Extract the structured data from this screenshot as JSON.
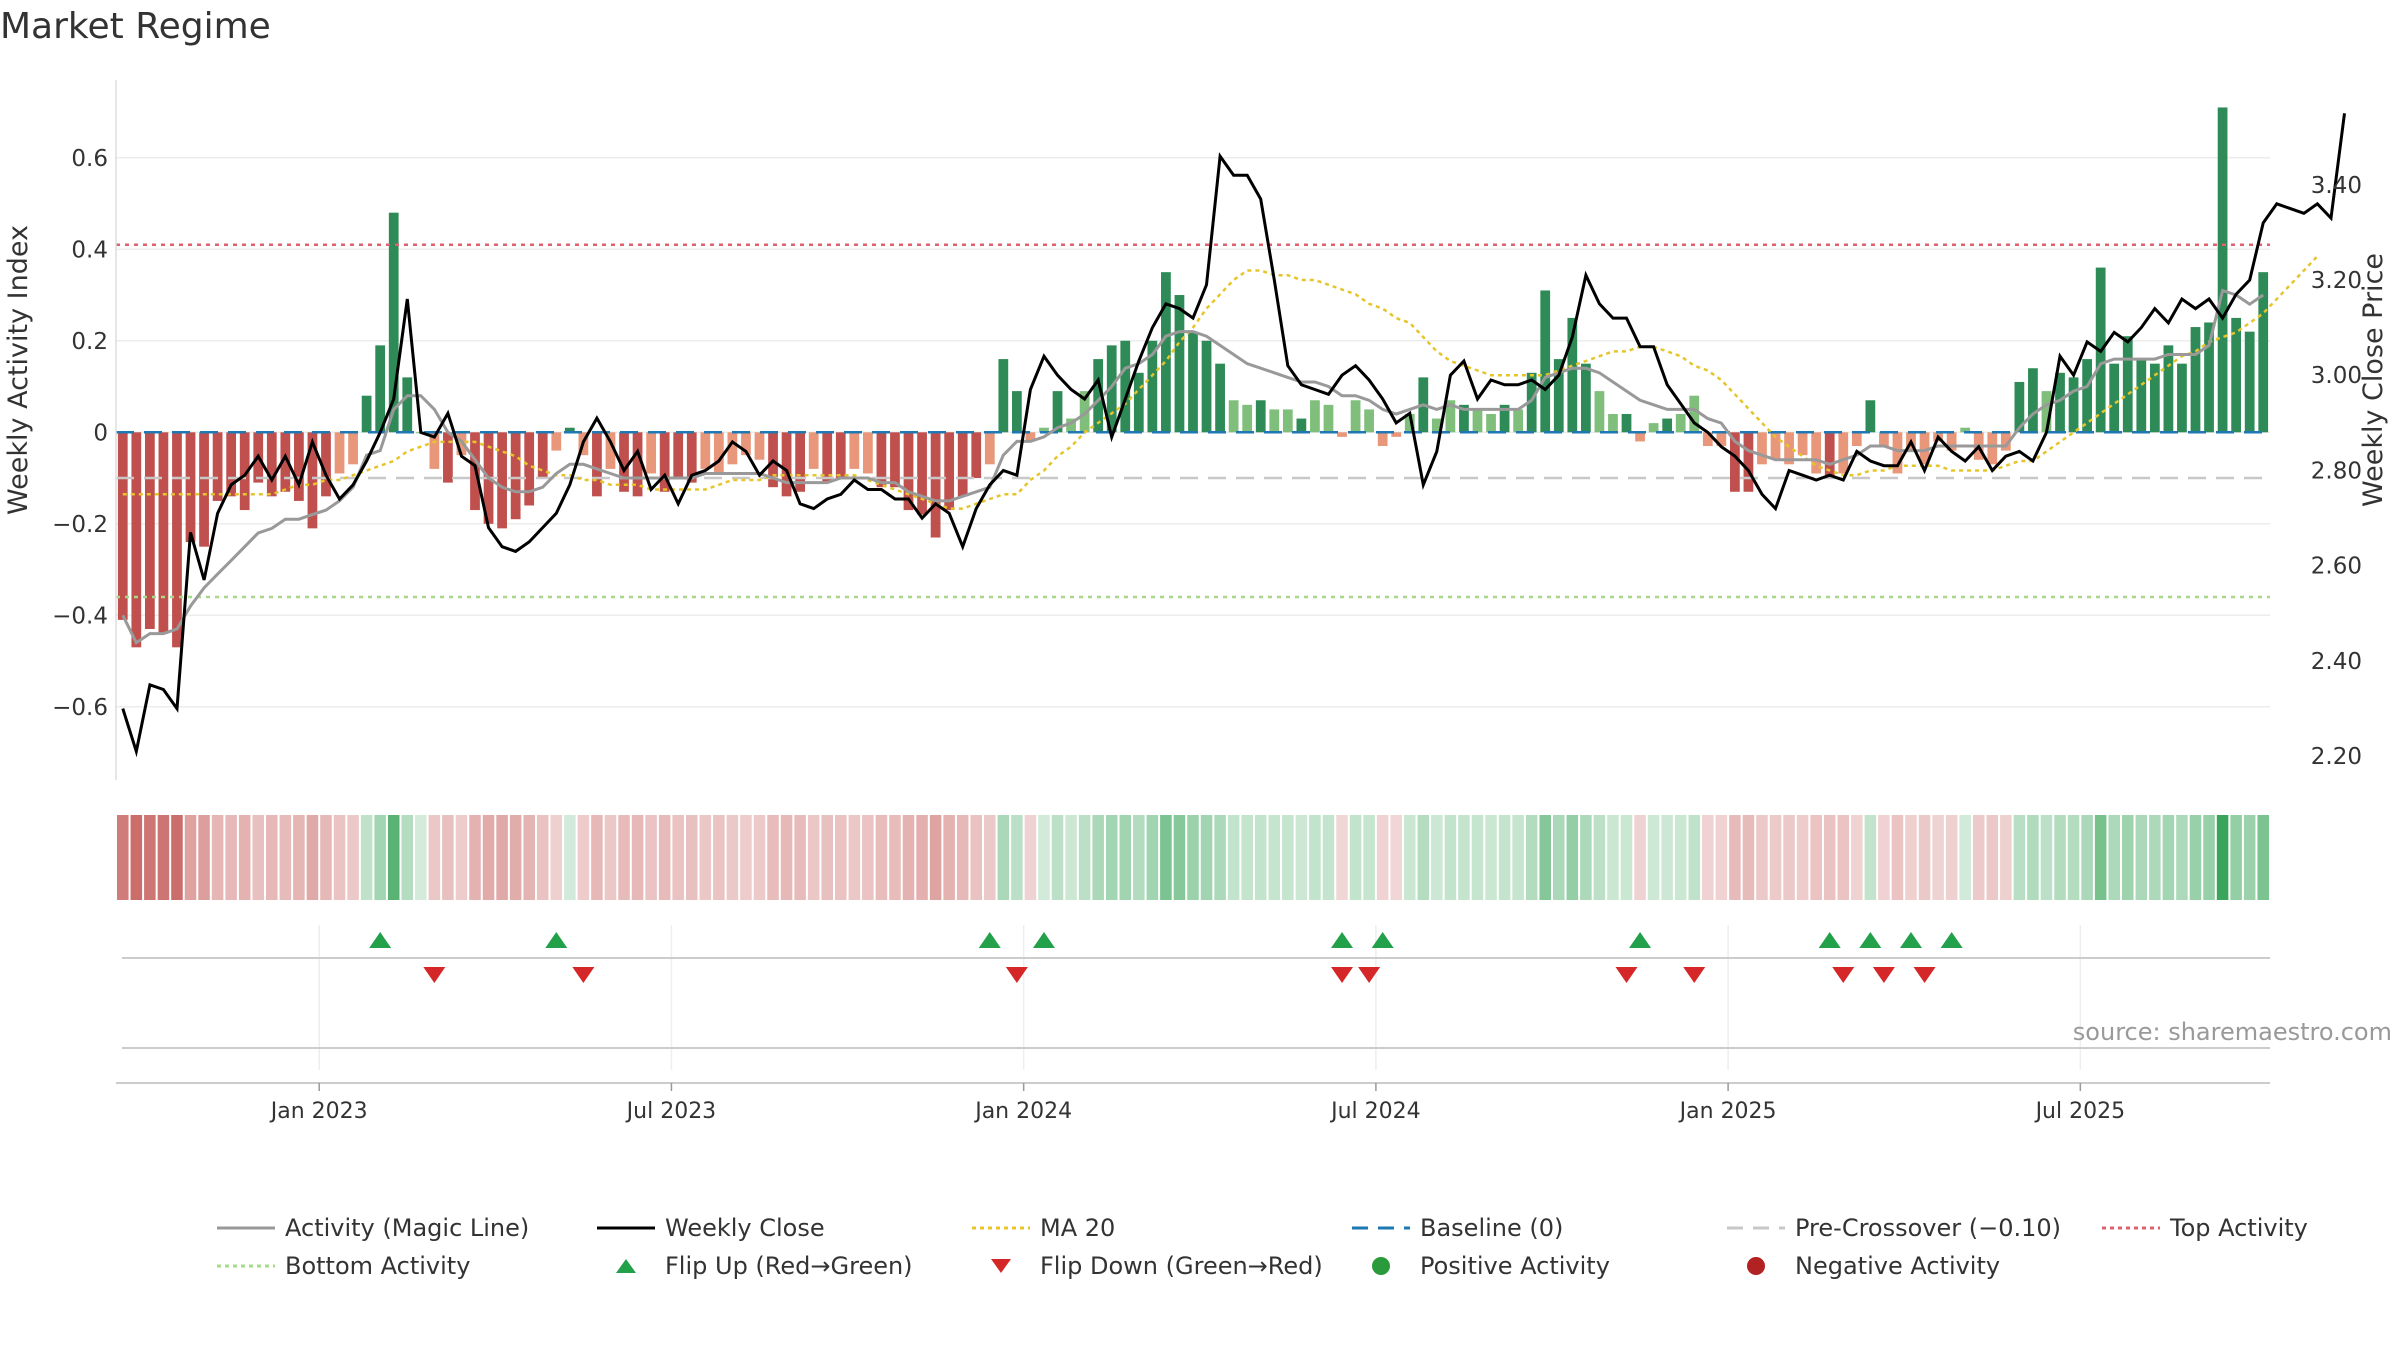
{
  "title": "Market Regime",
  "source": "source: sharemaestro.com",
  "colors": {
    "positive_dark": "#2e8b57",
    "positive_light": "#7fbf7b",
    "negative_dark": "#c0504d",
    "negative_light": "#e8977a",
    "activity_line": "#999999",
    "weekly_close": "#000000",
    "ma20": "#e6c52a",
    "baseline": "#1f77b4",
    "pre_crossover": "#c8c8c8",
    "top_activity": "#e06070",
    "bottom_activity": "#a8d88a",
    "flip_up": "#22a04a",
    "flip_down": "#d62728",
    "positive_dot": "#2a9a3a",
    "negative_dot": "#b22222"
  },
  "legend": [
    {
      "label": "Activity (Magic Line)",
      "style": "solid",
      "color": "#999999"
    },
    {
      "label": "Weekly Close",
      "style": "solid",
      "color": "#000000"
    },
    {
      "label": "MA 20",
      "style": "dotted",
      "color": "#e6c52a"
    },
    {
      "label": "Baseline (0)",
      "style": "dashed",
      "color": "#1f77b4"
    },
    {
      "label": "Pre-Crossover (−0.10)",
      "style": "dashed",
      "color": "#c8c8c8"
    },
    {
      "label": "Top Activity",
      "style": "dotted",
      "color": "#e06070"
    },
    {
      "label": "Bottom Activity",
      "style": "dotted",
      "color": "#a8d88a"
    },
    {
      "label": "Flip Up (Red→Green)",
      "style": "triangle-up",
      "color": "#22a04a"
    },
    {
      "label": "Flip Down (Green→Red)",
      "style": "triangle-down",
      "color": "#d62728"
    },
    {
      "label": "Positive Activity",
      "style": "dot",
      "color": "#2a9a3a"
    },
    {
      "label": "Negative Activity",
      "style": "dot",
      "color": "#b22222"
    }
  ],
  "chart_data": {
    "type": "bar",
    "title": "Market Regime",
    "ylabel_left": "Weekly Activity Index",
    "ylabel_right": "Weekly Close Price",
    "ylim_left": [
      -0.76,
      0.77
    ],
    "ylim_right": [
      2.15,
      3.62
    ],
    "yticks_left": [
      "0.6",
      "0.4",
      "0.2",
      "0",
      "−0.2",
      "−0.4",
      "−0.6"
    ],
    "yticks_left_values": [
      0.6,
      0.4,
      0.2,
      0,
      -0.2,
      -0.4,
      -0.6
    ],
    "yticks_right": [
      "3.40",
      "3.20",
      "3.00",
      "2.80",
      "2.60",
      "2.40",
      "2.20"
    ],
    "yticks_right_values": [
      3.4,
      3.2,
      3.0,
      2.8,
      2.6,
      2.4,
      2.2
    ],
    "x_tick_labels": [
      "Jan 2023",
      "Jul 2023",
      "Jan 2024",
      "Jul 2024",
      "Jan 2025",
      "Jul 2025"
    ],
    "x_tick_weeks": [
      15,
      41,
      67,
      93,
      119,
      145
    ],
    "reference_lines": {
      "top_activity": 0.41,
      "bottom_activity": -0.36,
      "pre_crossover": -0.1,
      "baseline": 0
    },
    "activity_index": [
      -0.41,
      -0.47,
      -0.43,
      -0.44,
      -0.47,
      -0.24,
      -0.25,
      -0.15,
      -0.14,
      -0.17,
      -0.11,
      -0.14,
      -0.13,
      -0.15,
      -0.21,
      -0.14,
      -0.09,
      -0.07,
      0.08,
      0.19,
      0.48,
      0.12,
      0.0,
      -0.08,
      -0.11,
      -0.05,
      -0.17,
      -0.2,
      -0.21,
      -0.19,
      -0.16,
      -0.1,
      -0.04,
      0.01,
      -0.05,
      -0.14,
      -0.08,
      -0.13,
      -0.14,
      -0.09,
      -0.13,
      -0.1,
      -0.11,
      -0.08,
      -0.09,
      -0.07,
      -0.05,
      -0.06,
      -0.12,
      -0.14,
      -0.13,
      -0.08,
      -0.11,
      -0.1,
      -0.08,
      -0.09,
      -0.12,
      -0.12,
      -0.17,
      -0.18,
      -0.23,
      -0.17,
      -0.14,
      -0.1,
      -0.07,
      0.16,
      0.09,
      -0.02,
      0.01,
      0.09,
      0.03,
      0.09,
      0.16,
      0.19,
      0.2,
      0.13,
      0.2,
      0.35,
      0.3,
      0.22,
      0.2,
      0.15,
      0.07,
      0.06,
      0.07,
      0.05,
      0.05,
      0.03,
      0.07,
      0.06,
      -0.01,
      0.07,
      0.05,
      -0.03,
      -0.01,
      0.04,
      0.12,
      0.03,
      0.07,
      0.06,
      0.05,
      0.04,
      0.06,
      0.05,
      0.13,
      0.31,
      0.16,
      0.25,
      0.15,
      0.09,
      0.04,
      0.04,
      -0.02,
      0.02,
      0.03,
      0.04,
      0.08,
      -0.03,
      -0.03,
      -0.13,
      -0.13,
      -0.07,
      -0.06,
      -0.07,
      -0.05,
      -0.09,
      -0.1,
      -0.09,
      -0.03,
      0.07,
      -0.03,
      -0.09,
      -0.04,
      -0.07,
      -0.02,
      -0.04,
      0.01,
      -0.06,
      -0.07,
      -0.04,
      0.11,
      0.14,
      0.09,
      0.13,
      0.12,
      0.16,
      0.36,
      0.15,
      0.21,
      0.16,
      0.15,
      0.19,
      0.15,
      0.23,
      0.24,
      0.71,
      0.25,
      0.22,
      0.35
    ],
    "magic_line": [
      -0.4,
      -0.46,
      -0.44,
      -0.44,
      -0.43,
      -0.38,
      -0.34,
      -0.31,
      -0.28,
      -0.25,
      -0.22,
      -0.21,
      -0.19,
      -0.19,
      -0.18,
      -0.17,
      -0.15,
      -0.12,
      -0.05,
      -0.04,
      0.05,
      0.08,
      0.08,
      0.05,
      0.0,
      -0.02,
      -0.06,
      -0.1,
      -0.12,
      -0.13,
      -0.13,
      -0.12,
      -0.09,
      -0.07,
      -0.07,
      -0.08,
      -0.09,
      -0.1,
      -0.1,
      -0.1,
      -0.1,
      -0.1,
      -0.1,
      -0.09,
      -0.09,
      -0.09,
      -0.09,
      -0.09,
      -0.1,
      -0.11,
      -0.11,
      -0.11,
      -0.11,
      -0.1,
      -0.1,
      -0.1,
      -0.11,
      -0.11,
      -0.13,
      -0.14,
      -0.15,
      -0.15,
      -0.14,
      -0.13,
      -0.12,
      -0.05,
      -0.02,
      -0.02,
      -0.01,
      0.01,
      0.02,
      0.04,
      0.07,
      0.1,
      0.14,
      0.15,
      0.17,
      0.21,
      0.22,
      0.22,
      0.21,
      0.19,
      0.17,
      0.15,
      0.14,
      0.13,
      0.12,
      0.11,
      0.11,
      0.1,
      0.08,
      0.08,
      0.07,
      0.05,
      0.04,
      0.05,
      0.06,
      0.05,
      0.06,
      0.05,
      0.05,
      0.05,
      0.05,
      0.05,
      0.07,
      0.12,
      0.13,
      0.14,
      0.14,
      0.13,
      0.11,
      0.09,
      0.07,
      0.06,
      0.05,
      0.05,
      0.05,
      0.03,
      0.02,
      -0.02,
      -0.04,
      -0.05,
      -0.06,
      -0.06,
      -0.06,
      -0.06,
      -0.07,
      -0.06,
      -0.05,
      -0.03,
      -0.03,
      -0.04,
      -0.04,
      -0.04,
      -0.03,
      -0.03,
      -0.03,
      -0.03,
      -0.03,
      -0.03,
      0.01,
      0.04,
      0.06,
      0.07,
      0.09,
      0.1,
      0.15,
      0.16,
      0.16,
      0.16,
      0.16,
      0.17,
      0.17,
      0.17,
      0.19,
      0.31,
      0.3,
      0.28,
      0.3
    ],
    "weekly_close": [
      2.3,
      2.21,
      2.35,
      2.34,
      2.3,
      2.67,
      2.57,
      2.71,
      2.77,
      2.79,
      2.83,
      2.78,
      2.83,
      2.77,
      2.86,
      2.79,
      2.74,
      2.77,
      2.82,
      2.88,
      2.95,
      3.16,
      2.88,
      2.87,
      2.92,
      2.83,
      2.81,
      2.68,
      2.64,
      2.63,
      2.65,
      2.68,
      2.71,
      2.77,
      2.86,
      2.91,
      2.86,
      2.8,
      2.84,
      2.76,
      2.79,
      2.73,
      2.79,
      2.8,
      2.82,
      2.86,
      2.84,
      2.79,
      2.82,
      2.8,
      2.73,
      2.72,
      2.74,
      2.75,
      2.78,
      2.76,
      2.76,
      2.74,
      2.74,
      2.7,
      2.73,
      2.71,
      2.64,
      2.72,
      2.77,
      2.8,
      2.79,
      2.97,
      3.04,
      3.0,
      2.97,
      2.95,
      2.99,
      2.87,
      2.95,
      3.03,
      3.1,
      3.15,
      3.14,
      3.12,
      3.19,
      3.46,
      3.42,
      3.42,
      3.37,
      3.2,
      3.02,
      2.98,
      2.97,
      2.96,
      3.0,
      3.02,
      2.99,
      2.95,
      2.9,
      2.92,
      2.77,
      2.84,
      3.0,
      3.03,
      2.95,
      2.99,
      2.98,
      2.98,
      2.99,
      2.97,
      3.0,
      3.08,
      3.21,
      3.15,
      3.12,
      3.12,
      3.06,
      3.06,
      2.98,
      2.94,
      2.9,
      2.88,
      2.85,
      2.83,
      2.8,
      2.75,
      2.72,
      2.8,
      2.79,
      2.78,
      2.79,
      2.78,
      2.84,
      2.82,
      2.81,
      2.81,
      2.86,
      2.8,
      2.87,
      2.84,
      2.82,
      2.85,
      2.8,
      2.83,
      2.84,
      2.82,
      2.88,
      3.04,
      3.0,
      3.07,
      3.05,
      3.09,
      3.07,
      3.1,
      3.14,
      3.11,
      3.16,
      3.14,
      3.16,
      3.12,
      3.17,
      3.2,
      3.32,
      3.36,
      3.35,
      3.34,
      3.36,
      3.33,
      3.55
    ],
    "ma20": [
      2.75,
      2.75,
      2.75,
      2.75,
      2.75,
      2.75,
      2.75,
      2.75,
      2.75,
      2.75,
      2.75,
      2.75,
      2.76,
      2.77,
      2.77,
      2.78,
      2.78,
      2.79,
      2.8,
      2.81,
      2.82,
      2.84,
      2.85,
      2.86,
      2.86,
      2.86,
      2.86,
      2.85,
      2.84,
      2.83,
      2.81,
      2.8,
      2.79,
      2.79,
      2.78,
      2.78,
      2.77,
      2.77,
      2.77,
      2.76,
      2.76,
      2.76,
      2.76,
      2.76,
      2.77,
      2.78,
      2.78,
      2.78,
      2.79,
      2.79,
      2.79,
      2.79,
      2.79,
      2.79,
      2.79,
      2.78,
      2.77,
      2.76,
      2.75,
      2.74,
      2.73,
      2.72,
      2.72,
      2.73,
      2.74,
      2.75,
      2.75,
      2.78,
      2.8,
      2.83,
      2.85,
      2.88,
      2.9,
      2.92,
      2.94,
      2.97,
      3.0,
      3.03,
      3.07,
      3.1,
      3.14,
      3.17,
      3.2,
      3.22,
      3.22,
      3.21,
      3.21,
      3.2,
      3.2,
      3.19,
      3.18,
      3.17,
      3.15,
      3.14,
      3.12,
      3.11,
      3.08,
      3.05,
      3.03,
      3.02,
      3.01,
      3.0,
      3.0,
      3.0,
      3.0,
      3.0,
      3.01,
      3.02,
      3.03,
      3.04,
      3.05,
      3.05,
      3.06,
      3.06,
      3.05,
      3.04,
      3.02,
      3.01,
      2.99,
      2.96,
      2.93,
      2.9,
      2.87,
      2.85,
      2.83,
      2.81,
      2.8,
      2.79,
      2.79,
      2.8,
      2.8,
      2.81,
      2.81,
      2.81,
      2.81,
      2.8,
      2.8,
      2.8,
      2.8,
      2.81,
      2.82,
      2.82,
      2.84,
      2.86,
      2.88,
      2.9,
      2.92,
      2.94,
      2.96,
      2.98,
      3.0,
      3.02,
      3.04,
      3.05,
      3.07,
      3.08,
      3.09,
      3.11,
      3.13,
      3.16,
      3.19,
      3.22,
      3.25
    ],
    "strip_intensity_note": "heat strip mirrors activity sign per week",
    "flip_up_weeks": [
      19,
      32,
      64,
      68,
      90,
      93,
      112,
      126,
      129,
      132,
      135
    ],
    "flip_down_weeks": [
      23,
      34,
      66,
      90,
      92,
      111,
      116,
      127,
      130,
      133
    ]
  }
}
